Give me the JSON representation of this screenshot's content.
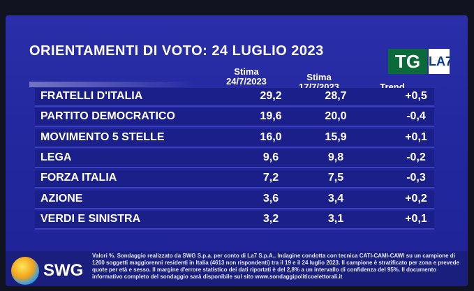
{
  "title": "ORIENTAMENTI DI VOTO: 24 LUGLIO 2023",
  "logo": {
    "tg": "TG",
    "channel": "LA7"
  },
  "chart_data": {
    "type": "table",
    "columns": [
      "Stima 24/7/2023",
      "Stima 17/7/2023",
      "Trend"
    ],
    "column_heads": [
      {
        "line1": "Stima",
        "line2": "24/7/2023"
      },
      {
        "line1": "Stima",
        "line2": "17/7/2023"
      },
      {
        "line1": "",
        "line2": "Trend"
      }
    ],
    "rows": [
      {
        "party": "FRATELLI D'ITALIA",
        "stima_24": "29,2",
        "stima_17": "28,7",
        "trend": "+0,5"
      },
      {
        "party": "PARTITO DEMOCRATICO",
        "stima_24": "19,6",
        "stima_17": "20,0",
        "trend": "-0,4"
      },
      {
        "party": "MOVIMENTO 5 STELLE",
        "stima_24": "16,0",
        "stima_17": "15,9",
        "trend": "+0,1"
      },
      {
        "party": "LEGA",
        "stima_24": "9,6",
        "stima_17": "9,8",
        "trend": "-0,2"
      },
      {
        "party": "FORZA ITALIA",
        "stima_24": "7,2",
        "stima_17": "7,5",
        "trend": "-0,3"
      },
      {
        "party": "AZIONE",
        "stima_24": "3,6",
        "stima_17": "3,4",
        "trend": "+0,2"
      },
      {
        "party": "VERDI E SINISTRA",
        "stima_24": "3,2",
        "stima_17": "3,1",
        "trend": "+0,1"
      }
    ]
  },
  "footer": {
    "brand": "SWG",
    "note": "Valori %. Sondaggio realizzato da SWG S.p.a. per conto di La7 S.p.A.. Indagine condotta con tecnica CATI-CAMI-CAWI su un campione di 1200 soggetti maggiorenni residenti in Italia (4613 non rispondenti) tra il 19 e il 24 luglio 2023. Il campione è stratificato per zona e prevede quote per età e sesso. Il margine d'errore statistico dei dati riportati è del 2,8% a un intervallo di confidenza del 95%. Il documento informativo completo del sondaggio sarà disponibile sul sito www.sondaggipoliticoelettorali.it"
  }
}
